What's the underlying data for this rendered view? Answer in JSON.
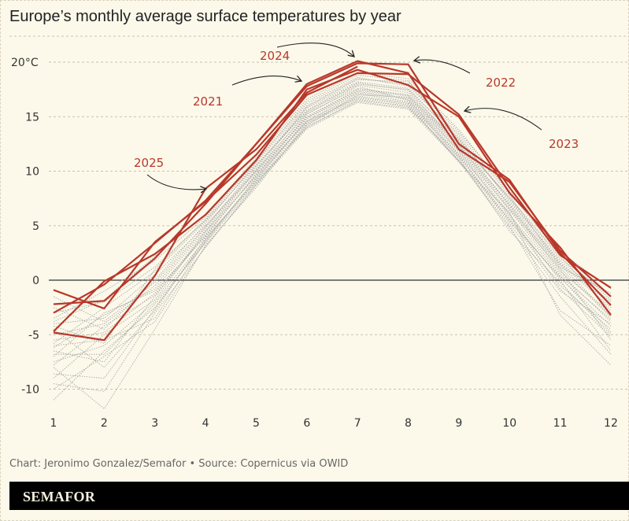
{
  "chart_data": {
    "type": "line",
    "title": "Europe’s monthly average surface temperatures by year",
    "xlabel": "",
    "ylabel": "",
    "x": [
      1,
      2,
      3,
      4,
      5,
      6,
      7,
      8,
      9,
      10,
      11,
      12
    ],
    "x_tick_labels": [
      "1",
      "2",
      "3",
      "4",
      "5",
      "6",
      "7",
      "8",
      "9",
      "10",
      "11",
      "12"
    ],
    "ylim": [
      -12,
      21
    ],
    "y_ticks": [
      20,
      15,
      10,
      5,
      0,
      -5,
      -10
    ],
    "y_tick_labels": [
      "20°C",
      "15",
      "10",
      "5",
      "0",
      "-5",
      "-10"
    ],
    "grid": "horizontal dashed",
    "highlight_color": "#b8382b",
    "background_color": "#fcf9ea",
    "highlight_series": [
      {
        "name": "2021",
        "values": [
          -4.7,
          -0.1,
          2.4,
          6.0,
          11.0,
          17.5,
          19.3,
          17.9,
          15.0,
          8.0,
          3.0,
          -3.2
        ]
      },
      {
        "name": "2022",
        "values": [
          -2.2,
          -1.9,
          2.0,
          7.0,
          12.5,
          17.8,
          19.9,
          19.8,
          12.5,
          9.2,
          2.5,
          -2.3
        ]
      },
      {
        "name": "2023",
        "values": [
          -0.9,
          -2.6,
          3.5,
          7.2,
          11.5,
          17.0,
          19.0,
          18.9,
          15.2,
          8.5,
          2.3,
          -0.7
        ]
      },
      {
        "name": "2024",
        "values": [
          -3.0,
          -0.4,
          3.4,
          7.3,
          12.5,
          18.0,
          20.1,
          19.0,
          12.0,
          9.0,
          2.7,
          -1.5
        ]
      },
      {
        "name": "2025",
        "values": [
          -4.8,
          -5.5,
          0.4,
          8.4,
          12.0,
          17.2,
          19.6
        ]
      }
    ],
    "background_series": [
      [
        -5.5,
        -4.8,
        -1.2,
        4.2,
        9.6,
        14.6,
        16.9,
        16.3,
        11.6,
        6.0,
        0.4,
        -3.6
      ],
      [
        -7.5,
        -6.0,
        -2.0,
        3.8,
        9.0,
        14.0,
        16.5,
        16.0,
        11.0,
        5.5,
        -0.5,
        -4.5
      ],
      [
        -9.5,
        -10.2,
        -3.0,
        3.0,
        8.8,
        14.2,
        17.0,
        16.8,
        12.0,
        6.5,
        1.0,
        -5.5
      ],
      [
        -4.0,
        -3.5,
        0.5,
        5.0,
        10.0,
        15.0,
        17.5,
        17.0,
        12.5,
        7.0,
        1.5,
        -2.5
      ],
      [
        -6.5,
        -7.5,
        -1.5,
        4.5,
        9.5,
        15.2,
        17.8,
        16.5,
        11.8,
        5.8,
        0.0,
        -6.5
      ],
      [
        -3.0,
        -2.0,
        1.2,
        5.5,
        10.5,
        15.5,
        18.0,
        17.5,
        13.0,
        7.5,
        2.0,
        -1.5
      ],
      [
        -11.0,
        -6.5,
        -2.5,
        3.5,
        9.2,
        14.8,
        17.2,
        16.6,
        11.4,
        5.2,
        -1.0,
        -4.0
      ],
      [
        -8.0,
        -11.8,
        -4.5,
        3.2,
        8.5,
        14.4,
        16.8,
        16.2,
        10.8,
        6.2,
        -3.2,
        -7.8
      ],
      [
        -5.0,
        -4.0,
        -0.5,
        4.8,
        10.2,
        15.8,
        18.2,
        17.6,
        12.8,
        6.8,
        0.8,
        -3.0
      ],
      [
        -6.0,
        -5.5,
        -3.5,
        3.6,
        9.4,
        14.6,
        17.1,
        16.4,
        11.2,
        4.5,
        -0.2,
        -5.0
      ],
      [
        -2.5,
        -4.5,
        0.0,
        5.2,
        10.8,
        16.0,
        18.5,
        18.0,
        13.2,
        7.2,
        1.8,
        -2.0
      ],
      [
        -7.0,
        -3.0,
        -1.0,
        4.0,
        9.8,
        15.0,
        17.4,
        16.9,
        12.2,
        6.4,
        0.6,
        -3.8
      ],
      [
        -4.5,
        -8.0,
        -2.8,
        3.9,
        9.1,
        14.3,
        16.6,
        15.9,
        11.0,
        5.0,
        -2.8,
        -6.0
      ],
      [
        -9.0,
        -5.0,
        -1.8,
        4.4,
        10.0,
        15.4,
        17.9,
        17.2,
        12.6,
        7.6,
        2.2,
        -2.8
      ],
      [
        -3.5,
        -1.0,
        1.8,
        5.8,
        11.0,
        16.2,
        18.6,
        17.8,
        13.4,
        7.8,
        1.2,
        -1.2
      ],
      [
        -6.8,
        -6.8,
        -2.2,
        3.4,
        8.9,
        14.1,
        16.4,
        15.8,
        11.3,
        5.6,
        0.2,
        -4.2
      ],
      [
        -5.8,
        -2.5,
        0.8,
        5.4,
        10.6,
        15.6,
        18.1,
        17.4,
        12.4,
        6.6,
        1.4,
        -3.3
      ],
      [
        -10.0,
        -7.0,
        -3.8,
        3.1,
        8.7,
        13.9,
        16.3,
        15.7,
        10.9,
        4.8,
        -1.5,
        -6.8
      ],
      [
        -1.5,
        -3.8,
        -0.2,
        4.9,
        10.4,
        15.9,
        18.4,
        18.2,
        13.6,
        8.2,
        2.6,
        -0.8
      ],
      [
        -7.8,
        -4.2,
        -1.4,
        4.1,
        9.7,
        14.9,
        17.3,
        16.7,
        11.9,
        6.1,
        -0.8,
        -5.2
      ],
      [
        -4.2,
        -5.8,
        1.0,
        5.6,
        10.9,
        16.4,
        18.8,
        18.3,
        12.9,
        7.4,
        1.6,
        -2.2
      ],
      [
        -8.6,
        -9.0,
        -2.6,
        3.7,
        9.3,
        14.5,
        16.7,
        16.1,
        11.5,
        5.4,
        0.3,
        -4.8
      ],
      [
        -3.8,
        -1.8,
        2.2,
        6.0,
        11.2,
        16.6,
        19.0,
        18.5,
        13.8,
        8.0,
        2.4,
        -1.8
      ],
      [
        -6.2,
        -3.2,
        -0.8,
        4.6,
        10.1,
        15.3,
        17.6,
        17.0,
        12.3,
        6.9,
        1.1,
        -3.4
      ]
    ],
    "annotations": [
      {
        "label": "2024",
        "points_to": {
          "x": 7,
          "y": 20.1
        }
      },
      {
        "label": "2021",
        "points_to": {
          "x": 6,
          "y": 18.3
        }
      },
      {
        "label": "2025",
        "points_to": {
          "x": 4,
          "y": 8.4
        }
      },
      {
        "label": "2022",
        "points_to": {
          "x": 8,
          "y": 20.0
        }
      },
      {
        "label": "2023",
        "points_to": {
          "x": 9,
          "y": 15.5
        }
      }
    ]
  },
  "footer": {
    "credit": "Chart: Jeronimo Gonzalez/Semafor • Source: Copernicus via OWID",
    "logo": "SEMAFOR"
  }
}
